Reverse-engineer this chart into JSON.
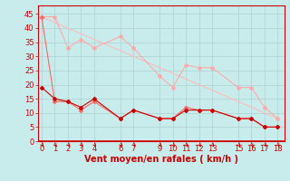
{
  "background_color": "#c8ecec",
  "grid_color": "#b0d0d0",
  "xlabel": "Vent moyen/en rafales ( km/h )",
  "xlabel_color": "#cc0000",
  "xlabel_fontsize": 7,
  "tick_color": "#cc0000",
  "tick_fontsize": 6,
  "ylim": [
    0,
    48
  ],
  "yticks": [
    0,
    5,
    10,
    15,
    20,
    25,
    30,
    35,
    40,
    45
  ],
  "xticks": [
    0,
    1,
    2,
    3,
    4,
    6,
    7,
    9,
    10,
    11,
    12,
    13,
    15,
    16,
    17,
    18
  ],
  "line1_x": [
    0,
    1,
    2,
    3,
    4,
    6,
    7,
    9,
    10,
    11,
    12,
    13,
    15,
    16,
    17,
    18
  ],
  "line1_y": [
    44,
    44,
    33,
    36,
    33,
    37,
    33,
    23,
    19,
    27,
    26,
    26,
    19,
    19,
    12,
    8
  ],
  "line1_color": "#ffaaaa",
  "line1_marker": "D",
  "line1_markersize": 2,
  "line2_x": [
    0,
    1,
    2,
    3,
    4,
    6,
    7,
    9,
    10,
    11,
    12,
    13,
    15,
    16,
    17,
    18
  ],
  "line2_y": [
    44,
    14,
    14,
    11,
    14,
    8,
    11,
    8,
    8,
    12,
    11,
    11,
    8,
    8,
    5,
    5
  ],
  "line2_color": "#ff6666",
  "line2_marker": "D",
  "line2_markersize": 2,
  "line3_x": [
    0,
    18
  ],
  "line3_y": [
    44,
    8
  ],
  "line3_color": "#ffbbbb",
  "line4_x": [
    0,
    1,
    2,
    3,
    4,
    6,
    7,
    9,
    10,
    11,
    12,
    13,
    15,
    16,
    17,
    18
  ],
  "line4_y": [
    19,
    15,
    14,
    12,
    15,
    8,
    11,
    8,
    8,
    11,
    11,
    11,
    8,
    8,
    5,
    5
  ],
  "line4_color": "#cc0000",
  "line4_marker": "D",
  "line4_markersize": 2,
  "xlim": [
    -0.3,
    18.5
  ],
  "spine_color": "#cc0000",
  "axhline_color": "#cc0000",
  "axhline_lw": 1.2
}
